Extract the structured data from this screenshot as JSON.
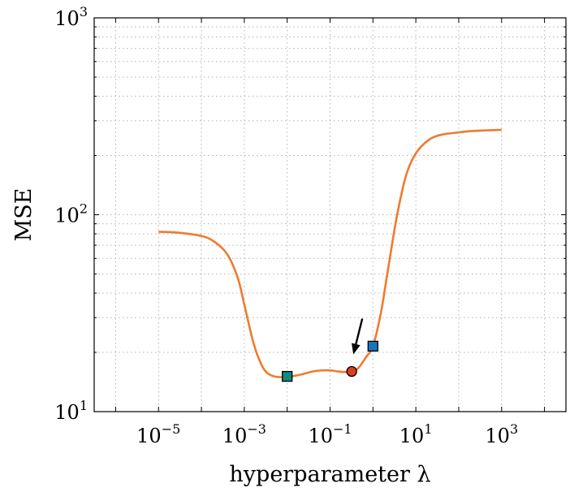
{
  "chart_data": {
    "type": "line",
    "title": "",
    "xlabel": "hyperparameter λ",
    "ylabel": "MSE",
    "x_scale": "log",
    "y_scale": "log",
    "xlim": [
      3.16e-07,
      31622.8
    ],
    "ylim": [
      10,
      1000
    ],
    "grid": true,
    "x_ticks": [
      {
        "base": "10",
        "exp": "−5"
      },
      {
        "base": "10",
        "exp": "−3"
      },
      {
        "base": "10",
        "exp": "−1"
      },
      {
        "base": "10",
        "exp": "1"
      },
      {
        "base": "10",
        "exp": "3"
      }
    ],
    "y_ticks": [
      {
        "base": "10",
        "exp": "1"
      },
      {
        "base": "10",
        "exp": "2"
      },
      {
        "base": "10",
        "exp": "3"
      }
    ],
    "series": [
      {
        "color": "#ee7b30",
        "x": [
          1e-05,
          3e-05,
          0.0001,
          0.0002,
          0.0004,
          0.0007,
          0.001,
          0.0015,
          0.002,
          0.003,
          0.005,
          0.01,
          0.02,
          0.04,
          0.07,
          0.1,
          0.15,
          0.22,
          0.32,
          0.45,
          0.7,
          1.0,
          1.5,
          2.0,
          3.0,
          4.0,
          6.0,
          10,
          20,
          40,
          100,
          200,
          400,
          1000
        ],
        "y": [
          82,
          81,
          78,
          73,
          63,
          48,
          35,
          24,
          19.5,
          16.2,
          15.1,
          15.0,
          15.4,
          16.0,
          16.2,
          16.2,
          16.0,
          15.9,
          16.0,
          16.6,
          19,
          21.5,
          31,
          45,
          78,
          110,
          160,
          205,
          240,
          255,
          262,
          266,
          268,
          270
        ]
      }
    ],
    "markers": [
      {
        "shape": "square",
        "x": 0.01,
        "y": 15.1,
        "color": "#128c7d"
      },
      {
        "shape": "circle",
        "x": 0.32,
        "y": 16.0,
        "color": "#d9401f"
      },
      {
        "shape": "square",
        "x": 1.0,
        "y": 21.5,
        "color": "#1575b9"
      }
    ],
    "annotations": [
      {
        "type": "arrow",
        "points_to_marker": 1,
        "color": "#000000"
      }
    ]
  }
}
